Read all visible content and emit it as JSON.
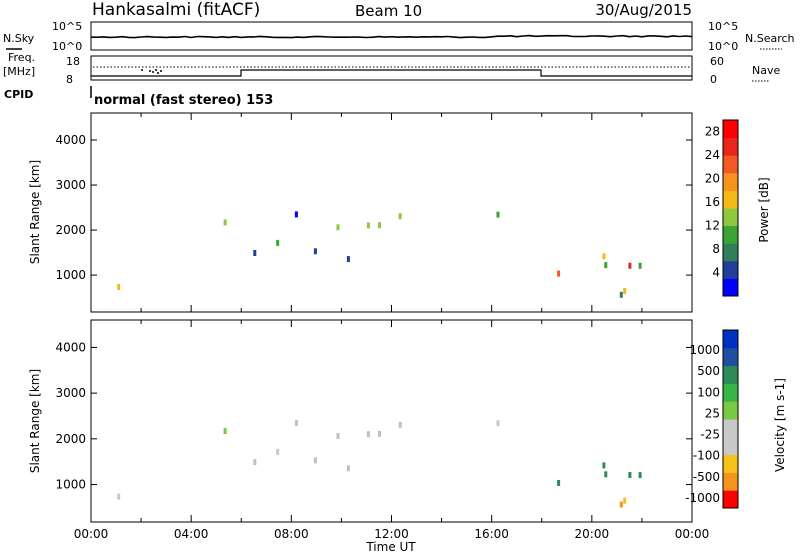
{
  "header": {
    "station": "Hankasalmi (fitACF)",
    "beam": "Beam 10",
    "date": "30/Aug/2015"
  },
  "status_panels": {
    "nsky_label": "N.Sky",
    "nsky_ticks": [
      "10^5",
      "10^0"
    ],
    "nsearch_label": "N.Search",
    "nsearch_ticks": [
      "10^5",
      "10^0"
    ],
    "freq_label_1": "Freq.",
    "freq_label_2": "[MHz]",
    "freq_ticks": [
      "18",
      "8"
    ],
    "nave_label": "Nave",
    "nave_ticks": [
      "60",
      "0"
    ],
    "cpid_label": "CPID",
    "cpid_value": "normal (fast stereo) 153"
  },
  "colors": {
    "power_scale": [
      "#0000ff",
      "#1f3f99",
      "#2e7f5a",
      "#3aa535",
      "#8fc73e",
      "#f6b91a",
      "#f6921e",
      "#f15a24",
      "#e8261c",
      "#ff0000"
    ],
    "velocity_scale": [
      "#ff0000",
      "#f7941d",
      "#f7c21d",
      "#c8c8c8",
      "#c8c8c8",
      "#7ac943",
      "#39b54a",
      "#2e8b57",
      "#1f4fa0",
      "#0030c0"
    ],
    "ground_scatter": "#c0c0c0"
  },
  "chart_data": [
    {
      "type": "heatmap",
      "name": "power",
      "ylabel": "Slant Range [km]",
      "xlabel": "Time UT",
      "x_ticks": [
        "00:00",
        "04:00",
        "08:00",
        "12:00",
        "16:00",
        "20:00",
        "00:00"
      ],
      "x_range_hours": [
        0,
        24
      ],
      "y_ticks": [
        1000,
        2000,
        3000,
        4000
      ],
      "ylim": [
        180,
        4600
      ],
      "colorbar_label": "Power [dB]",
      "colorbar_ticks": [
        4,
        8,
        12,
        16,
        20,
        24,
        28
      ],
      "colorbar_range": [
        0,
        30
      ]
    },
    {
      "type": "heatmap",
      "name": "velocity",
      "ylabel": "Slant Range [km]",
      "xlabel": "Time UT",
      "x_ticks": [
        "00:00",
        "04:00",
        "08:00",
        "12:00",
        "16:00",
        "20:00",
        "00:00"
      ],
      "x_range_hours": [
        0,
        24
      ],
      "y_ticks": [
        1000,
        2000,
        3000,
        4000
      ],
      "ylim": [
        180,
        4600
      ],
      "colorbar_label": "Velocity [m s-1]",
      "colorbar_ticks": [
        "1000",
        "500",
        "100",
        "25",
        "-25",
        "-100",
        "-500",
        "-1000"
      ]
    }
  ],
  "time_axis_label": "Time UT"
}
